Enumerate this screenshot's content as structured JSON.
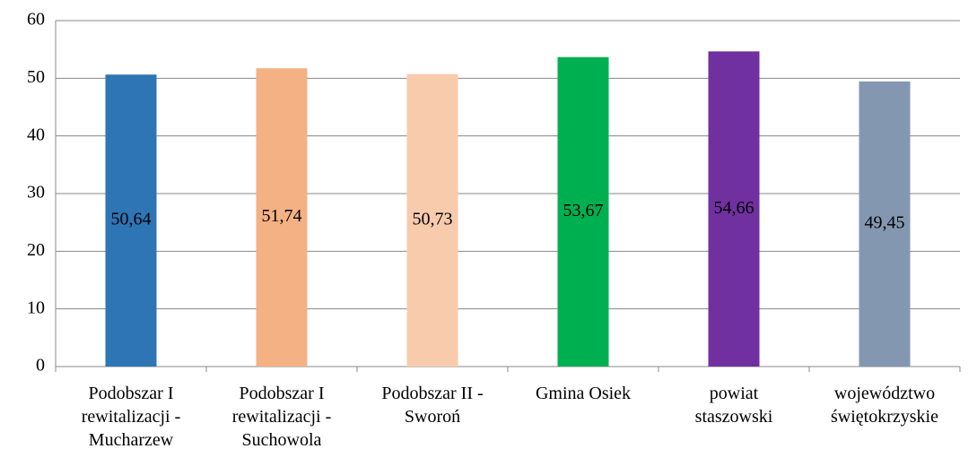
{
  "chart_data": {
    "type": "bar",
    "categories": [
      "Podobszar I rewitalizacji - Mucharzew",
      "Podobszar I rewitalizacji - Suchowola",
      "Podobszar II - Sworoń",
      "Gmina Osiek",
      "powiat staszowski",
      "województwo świętokrzyskie"
    ],
    "values": [
      50.64,
      51.74,
      50.73,
      53.67,
      54.66,
      49.45
    ],
    "value_labels": [
      "50,64",
      "51,74",
      "50,73",
      "53,67",
      "54,66",
      "49,45"
    ],
    "colors": [
      "#2e75b6",
      "#f4b183",
      "#f8cbad",
      "#00b050",
      "#7030a0",
      "#8497b0"
    ],
    "ylim": [
      0,
      60
    ],
    "yticks": [
      0,
      10,
      20,
      30,
      40,
      50,
      60
    ],
    "grid": true
  }
}
